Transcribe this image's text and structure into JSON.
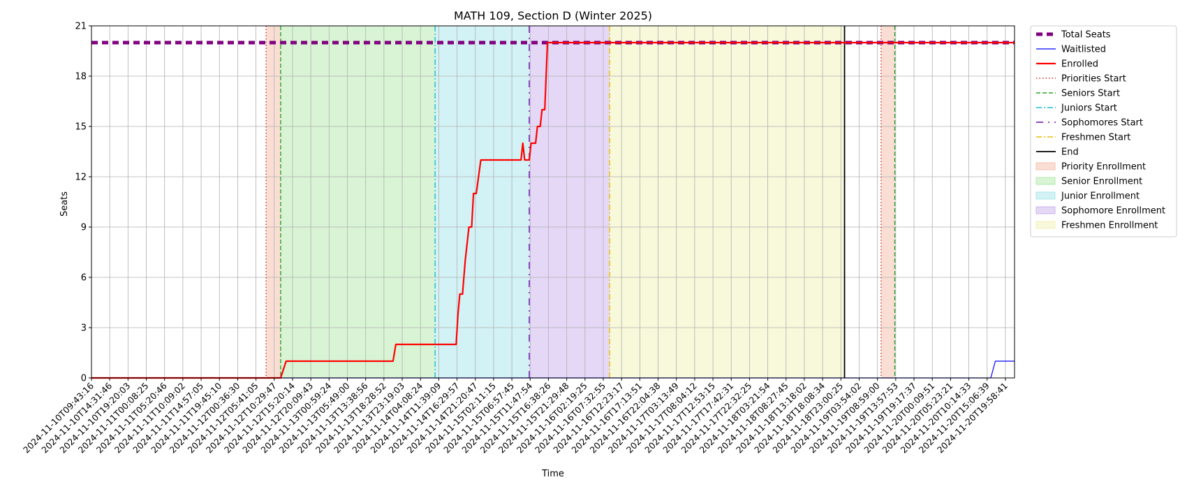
{
  "chart_data": {
    "type": "line",
    "title": "MATH 109, Section D (Winter 2025)",
    "xlabel": "Time",
    "ylabel": "Seats",
    "ylim": [
      0,
      21
    ],
    "yticks": [
      0,
      3,
      6,
      9,
      12,
      15,
      18,
      21
    ],
    "grid": true,
    "legend_position": "outside-right-top",
    "x_tick_labels": [
      "2024-11-10T09:43:16",
      "2024-11-10T14:31:46",
      "2024-11-10T19:20:03",
      "2024-11-11T00:08:25",
      "2024-11-11T05:20:46",
      "2024-11-11T10:09:02",
      "2024-11-11T14:57:05",
      "2024-11-11T19:45:10",
      "2024-11-12T00:36:30",
      "2024-11-12T05:41:05",
      "2024-11-12T10:29:47",
      "2024-11-12T15:20:14",
      "2024-11-12T20:09:43",
      "2024-11-13T00:59:24",
      "2024-11-13T05:49:00",
      "2024-11-13T13:38:56",
      "2024-11-13T18:28:52",
      "2024-11-13T23:19:03",
      "2024-11-14T04:08:24",
      "2024-11-14T11:39:09",
      "2024-11-14T16:29:57",
      "2024-11-14T21:20:47",
      "2024-11-15T02:11:15",
      "2024-11-15T06:57:45",
      "2024-11-15T11:47:54",
      "2024-11-15T16:38:26",
      "2024-11-15T21:29:48",
      "2024-11-16T02:19:25",
      "2024-11-16T07:32:55",
      "2024-11-16T12:23:17",
      "2024-11-16T17:13:51",
      "2024-11-16T22:04:38",
      "2024-11-17T03:13:49",
      "2024-11-17T08:04:12",
      "2024-11-17T12:53:15",
      "2024-11-17T17:42:31",
      "2024-11-17T22:32:25",
      "2024-11-18T03:21:54",
      "2024-11-18T08:27:45",
      "2024-11-18T13:18:02",
      "2024-11-18T18:08:34",
      "2024-11-18T23:00:25",
      "2024-11-19T03:54:02",
      "2024-11-19T08:59:00",
      "2024-11-19T13:57:53",
      "2024-11-19T19:17:37",
      "2024-11-20T00:09:51",
      "2024-11-20T05:23:21",
      "2024-11-20T10:14:33",
      "2024-11-20T15:06:39",
      "2024-11-20T19:58:41"
    ],
    "x_range": [
      0,
      50.5
    ],
    "colors": {
      "total": "#800080",
      "waitlisted": "#0000ff",
      "enrolled": "#ff0000",
      "priority_line": "#d62728",
      "seniors_line": "#2ca02c",
      "juniors_line": "#17becf",
      "sophomores_line": "#6a0dad",
      "freshmen_line": "#e5c100",
      "end_line": "#000000",
      "priority_fill": "#f4b6a0",
      "senior_fill": "#a8e6a0",
      "junior_fill": "#9de3e8",
      "sophomore_fill": "#c4a8ec",
      "freshmen_fill": "#f0f0b0"
    },
    "series": [
      {
        "name": "Total Seats",
        "key": "total",
        "points": [
          [
            0,
            20
          ],
          [
            50.5,
            20
          ]
        ]
      },
      {
        "name": "Waitlisted",
        "key": "waitlisted",
        "points": [
          [
            0,
            0
          ],
          [
            49.2,
            0
          ],
          [
            49.45,
            1
          ],
          [
            50.5,
            1
          ]
        ]
      },
      {
        "name": "Enrolled",
        "key": "enrolled",
        "points": [
          [
            0,
            0
          ],
          [
            10.35,
            0
          ],
          [
            10.65,
            1
          ],
          [
            16.5,
            1
          ],
          [
            16.65,
            2
          ],
          [
            19.95,
            2
          ],
          [
            20.05,
            3.8
          ],
          [
            20.15,
            5
          ],
          [
            20.3,
            5
          ],
          [
            20.45,
            7
          ],
          [
            20.65,
            9
          ],
          [
            20.8,
            9
          ],
          [
            20.9,
            11
          ],
          [
            21.05,
            11
          ],
          [
            21.3,
            13
          ],
          [
            23.5,
            13
          ],
          [
            23.6,
            14
          ],
          [
            23.7,
            13
          ],
          [
            23.95,
            13
          ],
          [
            24.05,
            14
          ],
          [
            24.3,
            14
          ],
          [
            24.4,
            15
          ],
          [
            24.55,
            15
          ],
          [
            24.65,
            16
          ],
          [
            24.8,
            16
          ],
          [
            24.95,
            20
          ],
          [
            50.5,
            20
          ]
        ]
      }
    ],
    "phase_lines": [
      {
        "name": "Priorities Start",
        "key": "priority_line",
        "x": 9.55,
        "style": "dotted"
      },
      {
        "name": "Seniors Start",
        "key": "seniors_line",
        "x": 10.35,
        "style": "dashed"
      },
      {
        "name": "Juniors Start",
        "key": "juniors_line",
        "x": 18.8,
        "style": "dashdot"
      },
      {
        "name": "Sophomores Start",
        "key": "sophomores_line",
        "x": 23.95,
        "style": "dashdotsparse"
      },
      {
        "name": "Freshmen Start",
        "key": "freshmen_line",
        "x": 28.35,
        "style": "dashdot"
      },
      {
        "name": "End",
        "key": "end_line",
        "x": 41.2,
        "style": "solid"
      },
      {
        "name": "",
        "key": "priority_line",
        "x": 43.2,
        "style": "dotted"
      },
      {
        "name": "",
        "key": "seniors_line",
        "x": 43.95,
        "style": "dashed"
      }
    ],
    "phase_spans": [
      {
        "name": "Priority Enrollment",
        "key": "priority_fill",
        "x0": 9.55,
        "x1": 10.35
      },
      {
        "name": "Senior Enrollment",
        "key": "senior_fill",
        "x0": 10.35,
        "x1": 18.8
      },
      {
        "name": "Junior Enrollment",
        "key": "junior_fill",
        "x0": 18.8,
        "x1": 23.95
      },
      {
        "name": "Sophomore Enrollment",
        "key": "sophomore_fill",
        "x0": 23.95,
        "x1": 28.35
      },
      {
        "name": "Freshmen Enrollment",
        "key": "freshmen_fill",
        "x0": 28.35,
        "x1": 41.2
      },
      {
        "name": "",
        "key": "priority_fill",
        "x0": 43.2,
        "x1": 43.95
      }
    ],
    "legend": [
      {
        "label": "Total Seats",
        "kind": "line",
        "key": "total",
        "style": "thickdash"
      },
      {
        "label": "Waitlisted",
        "kind": "line",
        "key": "waitlisted",
        "style": "solidthin"
      },
      {
        "label": "Enrolled",
        "kind": "line",
        "key": "enrolled",
        "style": "solidthick"
      },
      {
        "label": "Priorities Start",
        "kind": "line",
        "key": "priority_line",
        "style": "dotted"
      },
      {
        "label": "Seniors Start",
        "kind": "line",
        "key": "seniors_line",
        "style": "dashed"
      },
      {
        "label": "Juniors Start",
        "kind": "line",
        "key": "juniors_line",
        "style": "dashdot"
      },
      {
        "label": "Sophomores Start",
        "kind": "line",
        "key": "sophomores_line",
        "style": "dashdotsparse"
      },
      {
        "label": "Freshmen Start",
        "kind": "line",
        "key": "freshmen_line",
        "style": "dashdot"
      },
      {
        "label": "End",
        "kind": "line",
        "key": "end_line",
        "style": "solid"
      },
      {
        "label": "Priority Enrollment",
        "kind": "patch",
        "key": "priority_fill"
      },
      {
        "label": "Senior Enrollment",
        "kind": "patch",
        "key": "senior_fill"
      },
      {
        "label": "Junior Enrollment",
        "kind": "patch",
        "key": "junior_fill"
      },
      {
        "label": "Sophomore Enrollment",
        "kind": "patch",
        "key": "sophomore_fill"
      },
      {
        "label": "Freshmen Enrollment",
        "kind": "patch",
        "key": "freshmen_fill"
      }
    ]
  }
}
